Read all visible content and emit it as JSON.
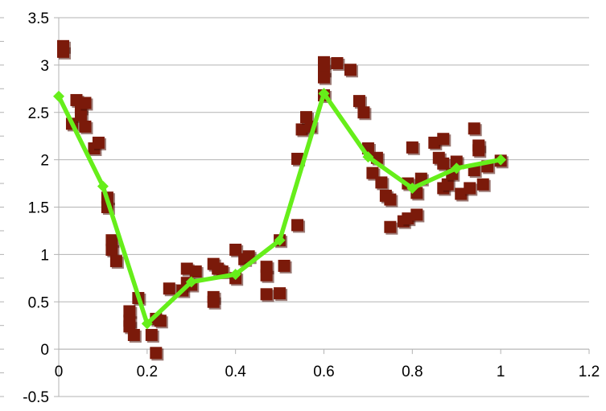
{
  "chart_data": {
    "type": "scatter",
    "title": "",
    "xlabel": "",
    "ylabel": "",
    "xlim": [
      0,
      1.2
    ],
    "ylim": [
      -0.5,
      3.5
    ],
    "x_ticks": [
      "0",
      "0.2",
      "0.4",
      "0.6",
      "0.8",
      "1",
      "1.2"
    ],
    "y_ticks": [
      "-0.5",
      "0",
      "0.5",
      "1",
      "1.5",
      "2",
      "2.5",
      "3",
      "3.5"
    ],
    "grid": {
      "horizontal": true,
      "vertical": false
    },
    "legend": "none",
    "colors": {
      "scatter": "#7b1a0a",
      "line": "#66ee1a",
      "grid": "#b3b3b3"
    },
    "series": [
      {
        "kind": "scatter",
        "marker": "square",
        "points": [
          [
            0.01,
            3.2
          ],
          [
            0.01,
            3.14
          ],
          [
            0.03,
            2.38
          ],
          [
            0.04,
            2.63
          ],
          [
            0.05,
            2.55
          ],
          [
            0.05,
            2.47
          ],
          [
            0.06,
            2.6
          ],
          [
            0.06,
            2.35
          ],
          [
            0.08,
            2.12
          ],
          [
            0.09,
            2.18
          ],
          [
            0.11,
            1.6
          ],
          [
            0.11,
            1.5
          ],
          [
            0.12,
            1.15
          ],
          [
            0.12,
            1.05
          ],
          [
            0.13,
            0.93
          ],
          [
            0.16,
            0.4
          ],
          [
            0.16,
            0.3
          ],
          [
            0.16,
            0.24
          ],
          [
            0.17,
            0.15
          ],
          [
            0.18,
            0.54
          ],
          [
            0.21,
            0.15
          ],
          [
            0.22,
            -0.04
          ],
          [
            0.22,
            0.32
          ],
          [
            0.23,
            0.3
          ],
          [
            0.25,
            0.64
          ],
          [
            0.28,
            0.62
          ],
          [
            0.29,
            0.7
          ],
          [
            0.29,
            0.85
          ],
          [
            0.3,
            0.68
          ],
          [
            0.31,
            0.82
          ],
          [
            0.35,
            0.9
          ],
          [
            0.35,
            0.55
          ],
          [
            0.35,
            0.5
          ],
          [
            0.36,
            0.85
          ],
          [
            0.37,
            0.82
          ],
          [
            0.4,
            1.05
          ],
          [
            0.4,
            0.75
          ],
          [
            0.42,
            0.95
          ],
          [
            0.43,
            0.98
          ],
          [
            0.47,
            0.87
          ],
          [
            0.47,
            0.78
          ],
          [
            0.47,
            0.58
          ],
          [
            0.5,
            0.59
          ],
          [
            0.5,
            1.15
          ],
          [
            0.51,
            0.88
          ],
          [
            0.54,
            1.31
          ],
          [
            0.54,
            2.01
          ],
          [
            0.55,
            2.32
          ],
          [
            0.56,
            2.45
          ],
          [
            0.57,
            2.35
          ],
          [
            0.6,
            3.03
          ],
          [
            0.6,
            2.95
          ],
          [
            0.6,
            2.87
          ],
          [
            0.6,
            2.68
          ],
          [
            0.63,
            3.02
          ],
          [
            0.66,
            2.95
          ],
          [
            0.68,
            2.62
          ],
          [
            0.69,
            2.5
          ],
          [
            0.7,
            2.12
          ],
          [
            0.71,
            1.86
          ],
          [
            0.72,
            2.02
          ],
          [
            0.73,
            1.76
          ],
          [
            0.74,
            1.62
          ],
          [
            0.75,
            1.58
          ],
          [
            0.75,
            1.29
          ],
          [
            0.78,
            1.35
          ],
          [
            0.79,
            1.38
          ],
          [
            0.79,
            1.75
          ],
          [
            0.8,
            2.13
          ],
          [
            0.81,
            1.42
          ],
          [
            0.81,
            1.65
          ],
          [
            0.82,
            1.8
          ],
          [
            0.85,
            2.18
          ],
          [
            0.86,
            2.02
          ],
          [
            0.87,
            2.22
          ],
          [
            0.87,
            1.96
          ],
          [
            0.87,
            1.7
          ],
          [
            0.88,
            1.74
          ],
          [
            0.89,
            1.85
          ],
          [
            0.9,
            1.98
          ],
          [
            0.91,
            1.64
          ],
          [
            0.93,
            1.7
          ],
          [
            0.94,
            2.33
          ],
          [
            0.94,
            1.89
          ],
          [
            0.95,
            2.15
          ],
          [
            0.95,
            2.1
          ],
          [
            0.96,
            1.74
          ],
          [
            0.97,
            1.93
          ],
          [
            1.0,
            1.99
          ]
        ]
      },
      {
        "kind": "line",
        "marker": "diamond",
        "points": [
          [
            0,
            2.67
          ],
          [
            0.1,
            1.72
          ],
          [
            0.2,
            0.27
          ],
          [
            0.3,
            0.71
          ],
          [
            0.4,
            0.79
          ],
          [
            0.5,
            1.15
          ],
          [
            0.6,
            2.7
          ],
          [
            0.7,
            2.03
          ],
          [
            0.8,
            1.7
          ],
          [
            0.9,
            1.91
          ],
          [
            1.0,
            2.0
          ]
        ]
      }
    ]
  }
}
